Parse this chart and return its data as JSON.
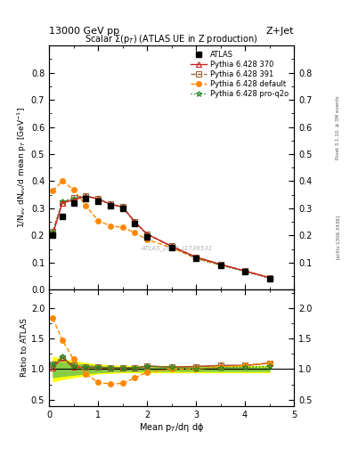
{
  "title_main": "Scalar Σ(p$_T$) (ATLAS UE in Z production)",
  "header_left": "13000 GeV pp",
  "header_right": "Z+Jet",
  "right_label_top": "Rivet 3.1.10, ≥ 3M events",
  "right_label_bot": "[arXiv:1306.3436]",
  "watermark": "ATLAS_2019_I1736531",
  "ylabel_main": "1/N$_{ev}$ dN$_{ev}$/d mean p$_T$ [GeV$^{-1}$]",
  "ylabel_ratio": "Ratio to ATLAS",
  "xlabel": "Mean p$_T$/dη dϕ",
  "x_atlas": [
    0.08,
    0.27,
    0.5,
    0.75,
    1.0,
    1.25,
    1.5,
    1.75,
    2.0,
    2.5,
    3.0,
    3.5,
    4.0,
    4.5
  ],
  "y_atlas": [
    0.2,
    0.27,
    0.32,
    0.335,
    0.325,
    0.31,
    0.3,
    0.245,
    0.195,
    0.155,
    0.115,
    0.088,
    0.065,
    0.04
  ],
  "x_py370": [
    0.08,
    0.27,
    0.5,
    0.75,
    1.0,
    1.25,
    1.5,
    1.75,
    2.0,
    2.5,
    3.0,
    3.5,
    4.0,
    4.5
  ],
  "y_py370": [
    0.205,
    0.32,
    0.33,
    0.345,
    0.335,
    0.315,
    0.305,
    0.25,
    0.205,
    0.16,
    0.12,
    0.093,
    0.069,
    0.044
  ],
  "x_py391": [
    0.08,
    0.27,
    0.5,
    0.75,
    1.0,
    1.25,
    1.5,
    1.75,
    2.0,
    2.5,
    3.0,
    3.5,
    4.0,
    4.5
  ],
  "y_py391": [
    0.215,
    0.32,
    0.34,
    0.345,
    0.335,
    0.315,
    0.305,
    0.25,
    0.205,
    0.16,
    0.12,
    0.093,
    0.069,
    0.044
  ],
  "x_pydef": [
    0.08,
    0.27,
    0.5,
    0.75,
    1.0,
    1.25,
    1.5,
    1.75,
    2.0,
    2.5,
    3.0,
    3.5,
    4.0,
    4.5
  ],
  "y_pydef": [
    0.365,
    0.4,
    0.37,
    0.31,
    0.255,
    0.235,
    0.23,
    0.21,
    0.185,
    0.155,
    0.115,
    0.091,
    0.069,
    0.044
  ],
  "x_pyq2o": [
    0.08,
    0.27,
    0.5,
    0.75,
    1.0,
    1.25,
    1.5,
    1.75,
    2.0,
    2.5,
    3.0,
    3.5,
    4.0,
    4.5
  ],
  "y_pyq2o": [
    0.215,
    0.325,
    0.335,
    0.345,
    0.335,
    0.315,
    0.305,
    0.25,
    0.205,
    0.16,
    0.115,
    0.09,
    0.067,
    0.042
  ],
  "ratio_py370": [
    1.025,
    1.19,
    1.03,
    1.03,
    1.03,
    1.015,
    1.017,
    1.02,
    1.05,
    1.033,
    1.043,
    1.06,
    1.06,
    1.1
  ],
  "ratio_py391": [
    1.075,
    1.185,
    1.063,
    1.03,
    1.03,
    1.016,
    1.017,
    1.02,
    1.05,
    1.033,
    1.043,
    1.059,
    1.059,
    1.1
  ],
  "ratio_pydef": [
    1.83,
    1.48,
    1.16,
    0.925,
    0.785,
    0.758,
    0.767,
    0.857,
    0.949,
    1.0,
    1.0,
    1.035,
    1.059,
    1.1
  ],
  "ratio_pyq2o": [
    1.075,
    1.205,
    1.047,
    1.03,
    1.03,
    1.016,
    1.017,
    1.02,
    1.05,
    1.033,
    1.0,
    1.022,
    1.031,
    1.05
  ],
  "band_yellow_lo": [
    0.8,
    0.84,
    0.87,
    0.9,
    0.93,
    0.94,
    0.95,
    0.95,
    0.95,
    0.95,
    0.95,
    0.95,
    0.95,
    0.95
  ],
  "band_yellow_hi": [
    1.2,
    1.16,
    1.13,
    1.1,
    1.07,
    1.06,
    1.05,
    1.05,
    1.05,
    1.05,
    1.05,
    1.05,
    1.05,
    1.05
  ],
  "band_green_lo": [
    0.87,
    0.89,
    0.91,
    0.93,
    0.95,
    0.96,
    0.97,
    0.97,
    0.97,
    0.97,
    0.97,
    0.97,
    0.97,
    0.97
  ],
  "band_green_hi": [
    1.13,
    1.11,
    1.09,
    1.07,
    1.05,
    1.04,
    1.03,
    1.03,
    1.03,
    1.03,
    1.03,
    1.03,
    1.03,
    1.03
  ],
  "color_atlas": "#000000",
  "color_py370": "#cc2222",
  "color_py391": "#996633",
  "color_pydef": "#ff8800",
  "color_pyq2o": "#228822",
  "color_yellow": "#ffff00",
  "color_green": "#88cc44",
  "xlim": [
    0.0,
    5.0
  ],
  "ylim_main": [
    0.0,
    0.9
  ],
  "ylim_ratio": [
    0.4,
    2.3
  ],
  "yticks_main": [
    0.0,
    0.1,
    0.2,
    0.3,
    0.4,
    0.5,
    0.6,
    0.7,
    0.8
  ],
  "yticks_ratio": [
    0.5,
    1.0,
    1.5,
    2.0
  ],
  "xticks": [
    0,
    1,
    2,
    3,
    4,
    5
  ]
}
